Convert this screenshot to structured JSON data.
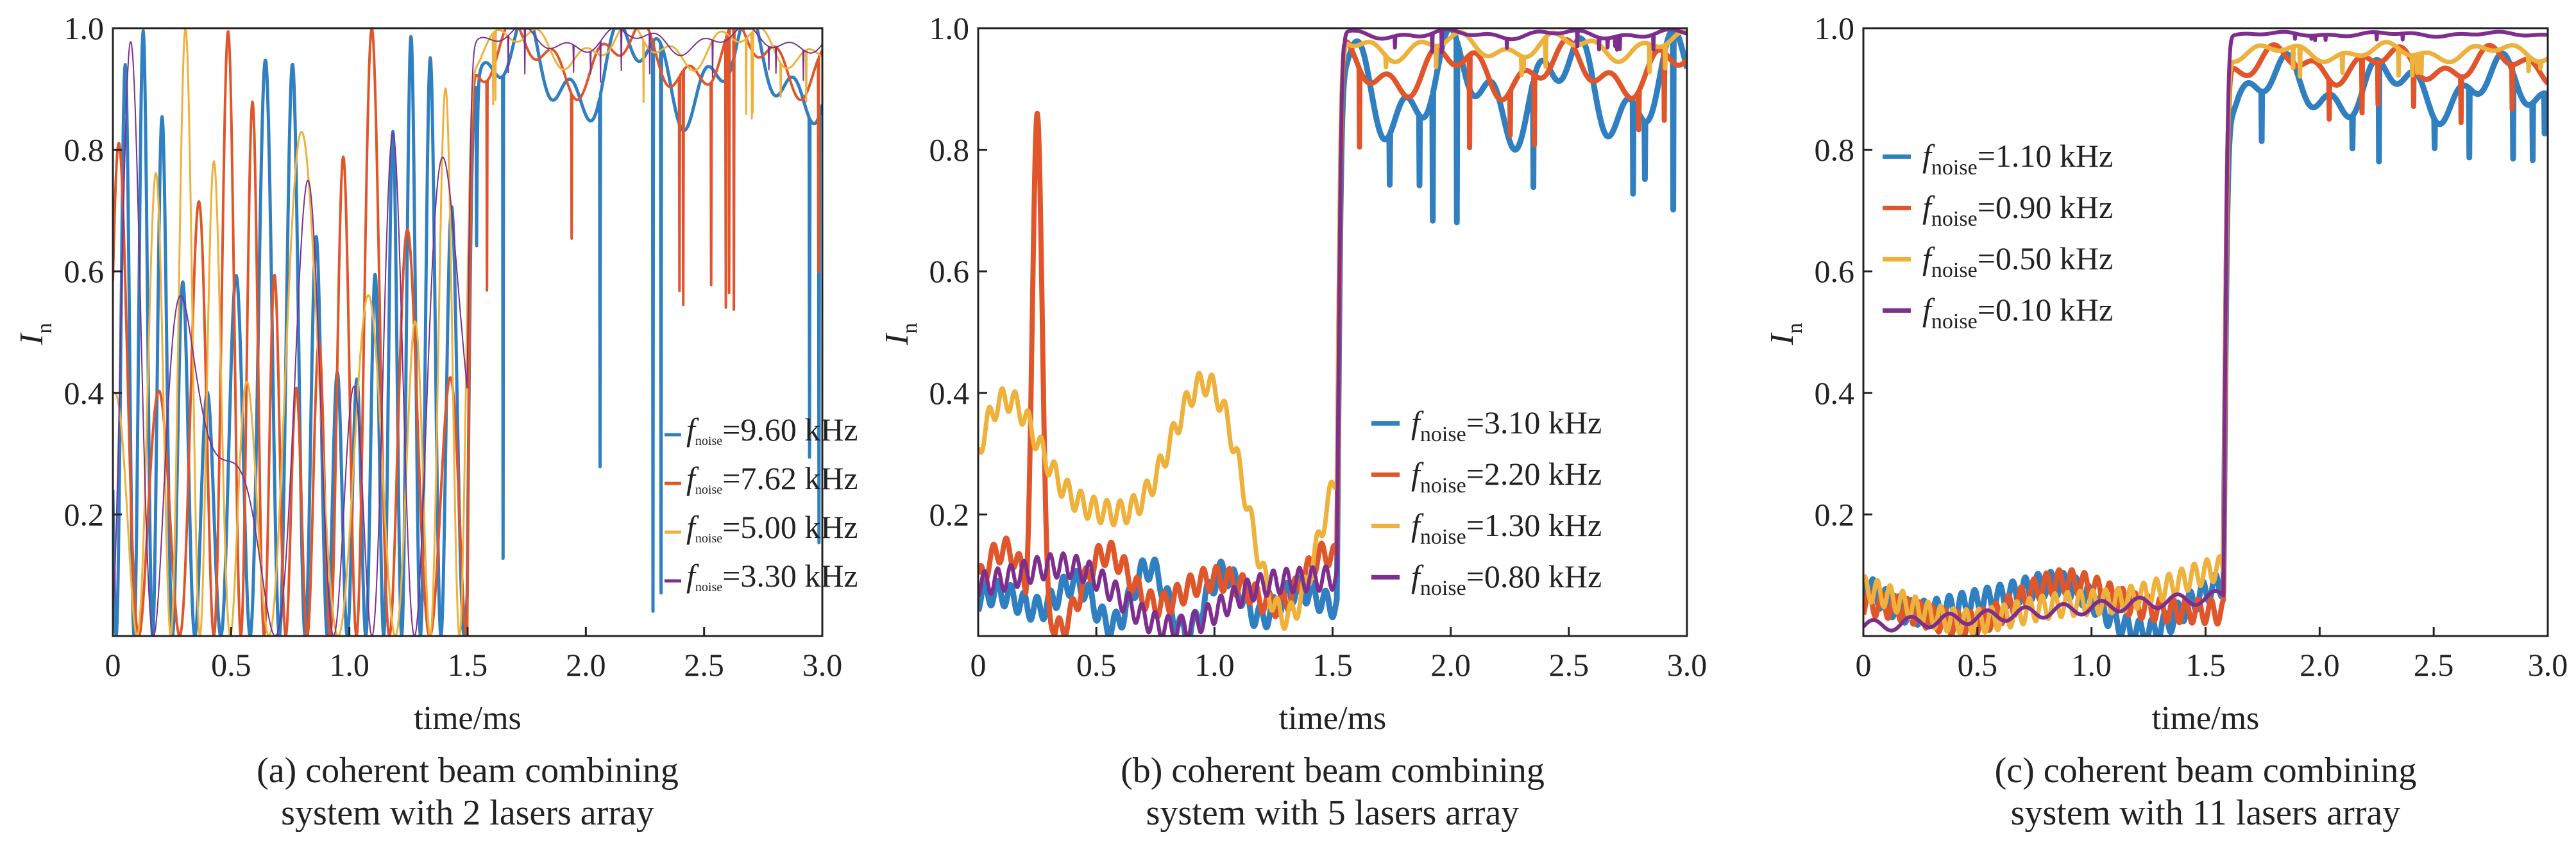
{
  "colors": {
    "blue": "#2f7fc1",
    "orange": "#e0562a",
    "yellow": "#eeb13c",
    "purple": "#7e2f8e",
    "axis": "#222222"
  },
  "chart_data": [
    {
      "type": "line",
      "caption": [
        "(a) coherent beam combining",
        "system with 2 lasers array"
      ],
      "xlabel": "time/ms",
      "ylabel": "I",
      "ylabel_sub": "n",
      "xlim": [
        0,
        3.0
      ],
      "ylim": [
        0,
        1.0
      ],
      "xticks": [
        "0",
        "0.5",
        "1.0",
        "1.5",
        "2.0",
        "2.5",
        "3.0"
      ],
      "yticks": [
        "0.2",
        "0.4",
        "0.6",
        "0.8",
        "1.0"
      ],
      "legend_position": "bottom-right",
      "legend_size": "small",
      "regime_switch_ms": 1.5,
      "series": [
        {
          "name": "f_noise=9.60 kHz",
          "label_f": "f",
          "label_sub": "noise",
          "label_rest": "=9.60 kHz",
          "color_key": "blue",
          "noise_khz": 9.6,
          "early_mean": 0.5,
          "late_mean": 0.93,
          "late_spread": 0.12,
          "min_dip": 0.0
        },
        {
          "name": "f_noise=7.62 kHz",
          "label_f": "f",
          "label_sub": "noise",
          "label_rest": "=7.62 kHz",
          "color_key": "orange",
          "noise_khz": 7.62,
          "early_mean": 0.5,
          "late_mean": 0.95,
          "late_spread": 0.08,
          "min_dip": 0.53
        },
        {
          "name": "f_noise=5.00 kHz",
          "label_f": "f",
          "label_sub": "noise",
          "label_rest": "=5.00 kHz",
          "color_key": "yellow",
          "noise_khz": 5.0,
          "early_mean": 0.5,
          "late_mean": 0.97,
          "late_spread": 0.05,
          "min_dip": 0.85
        },
        {
          "name": "f_noise=3.30 kHz",
          "label_f": "f",
          "label_sub": "noise",
          "label_rest": "=3.30 kHz",
          "color_key": "purple",
          "noise_khz": 3.3,
          "early_mean": 0.45,
          "late_mean": 0.98,
          "late_spread": 0.03,
          "min_dip": 0.9
        }
      ]
    },
    {
      "type": "line",
      "caption": [
        "(b) coherent beam combining",
        "system with 5 lasers array"
      ],
      "xlabel": "time/ms",
      "ylabel": "I",
      "ylabel_sub": "n",
      "xlim": [
        0,
        3.0
      ],
      "ylim": [
        0,
        1.0
      ],
      "xticks": [
        "0",
        "0.5",
        "1.0",
        "1.5",
        "2.0",
        "2.5",
        "3.0"
      ],
      "yticks": [
        "0.2",
        "0.4",
        "0.6",
        "0.8",
        "1.0"
      ],
      "legend_position": "bottom-right",
      "legend_size": "large",
      "regime_switch_ms": 1.52,
      "series": [
        {
          "name": "f_noise=3.10 kHz",
          "label_f": "f",
          "label_sub": "noise",
          "label_rest": "=3.10 kHz",
          "color_key": "blue",
          "noise_khz": 3.1,
          "early_mean": 0.06,
          "late_mean": 0.9,
          "late_spread": 0.12,
          "min_dip": 0.67
        },
        {
          "name": "f_noise=2.20 kHz",
          "label_f": "f",
          "label_sub": "noise",
          "label_rest": "=2.20 kHz",
          "color_key": "orange",
          "noise_khz": 2.2,
          "early_mean": 0.08,
          "late_mean": 0.93,
          "late_spread": 0.06,
          "min_dip": 0.8,
          "peak": [
            0.25,
            0.86
          ]
        },
        {
          "name": "f_noise=1.30 kHz",
          "label_f": "f",
          "label_sub": "noise",
          "label_rest": "=1.30 kHz",
          "color_key": "yellow",
          "noise_khz": 1.3,
          "early_mean": 0.25,
          "late_mean": 0.97,
          "late_spread": 0.03,
          "min_dip": 0.92
        },
        {
          "name": "f_noise=0.80 kHz",
          "label_f": "f",
          "label_sub": "noise",
          "label_rest": "=0.80 kHz",
          "color_key": "purple",
          "noise_khz": 0.8,
          "early_mean": 0.08,
          "late_mean": 0.99,
          "late_spread": 0.01,
          "min_dip": 0.96
        }
      ]
    },
    {
      "type": "line",
      "caption": [
        "(c) coherent beam combining",
        "system with 11 lasers array"
      ],
      "xlabel": "time/ms",
      "ylabel": "I",
      "ylabel_sub": "n",
      "xlim": [
        0,
        3.0
      ],
      "ylim": [
        0,
        1.0
      ],
      "xticks": [
        "0",
        "0.5",
        "1.0",
        "1.5",
        "2.0",
        "2.5",
        "3.0"
      ],
      "yticks": [
        "0.2",
        "0.4",
        "0.6",
        "0.8",
        "1.0"
      ],
      "legend_position": "top-left",
      "legend_size": "large",
      "regime_switch_ms": 1.58,
      "series": [
        {
          "name": "f_noise=1.10 kHz",
          "label_f": "f",
          "label_sub": "noise",
          "label_rest": "=1.10 kHz",
          "color_key": "blue",
          "noise_khz": 1.1,
          "early_mean": 0.06,
          "late_mean": 0.9,
          "late_spread": 0.07,
          "min_dip": 0.78
        },
        {
          "name": "f_noise=0.90 kHz",
          "label_f": "f",
          "label_sub": "noise",
          "label_rest": "=0.90 kHz",
          "color_key": "orange",
          "noise_khz": 0.9,
          "early_mean": 0.05,
          "late_mean": 0.94,
          "late_spread": 0.04,
          "min_dip": 0.84
        },
        {
          "name": "f_noise=0.50 kHz",
          "label_f": "f",
          "label_sub": "noise",
          "label_rest": "=0.50 kHz",
          "color_key": "yellow",
          "noise_khz": 0.5,
          "early_mean": 0.06,
          "late_mean": 0.96,
          "late_spread": 0.02,
          "min_dip": 0.92
        },
        {
          "name": "f_noise=0.10 kHz",
          "label_f": "f",
          "label_sub": "noise",
          "label_rest": "=0.10 kHz",
          "color_key": "purple",
          "noise_khz": 0.1,
          "early_mean": 0.05,
          "late_mean": 0.99,
          "late_spread": 0.005,
          "min_dip": 0.98
        }
      ]
    }
  ]
}
